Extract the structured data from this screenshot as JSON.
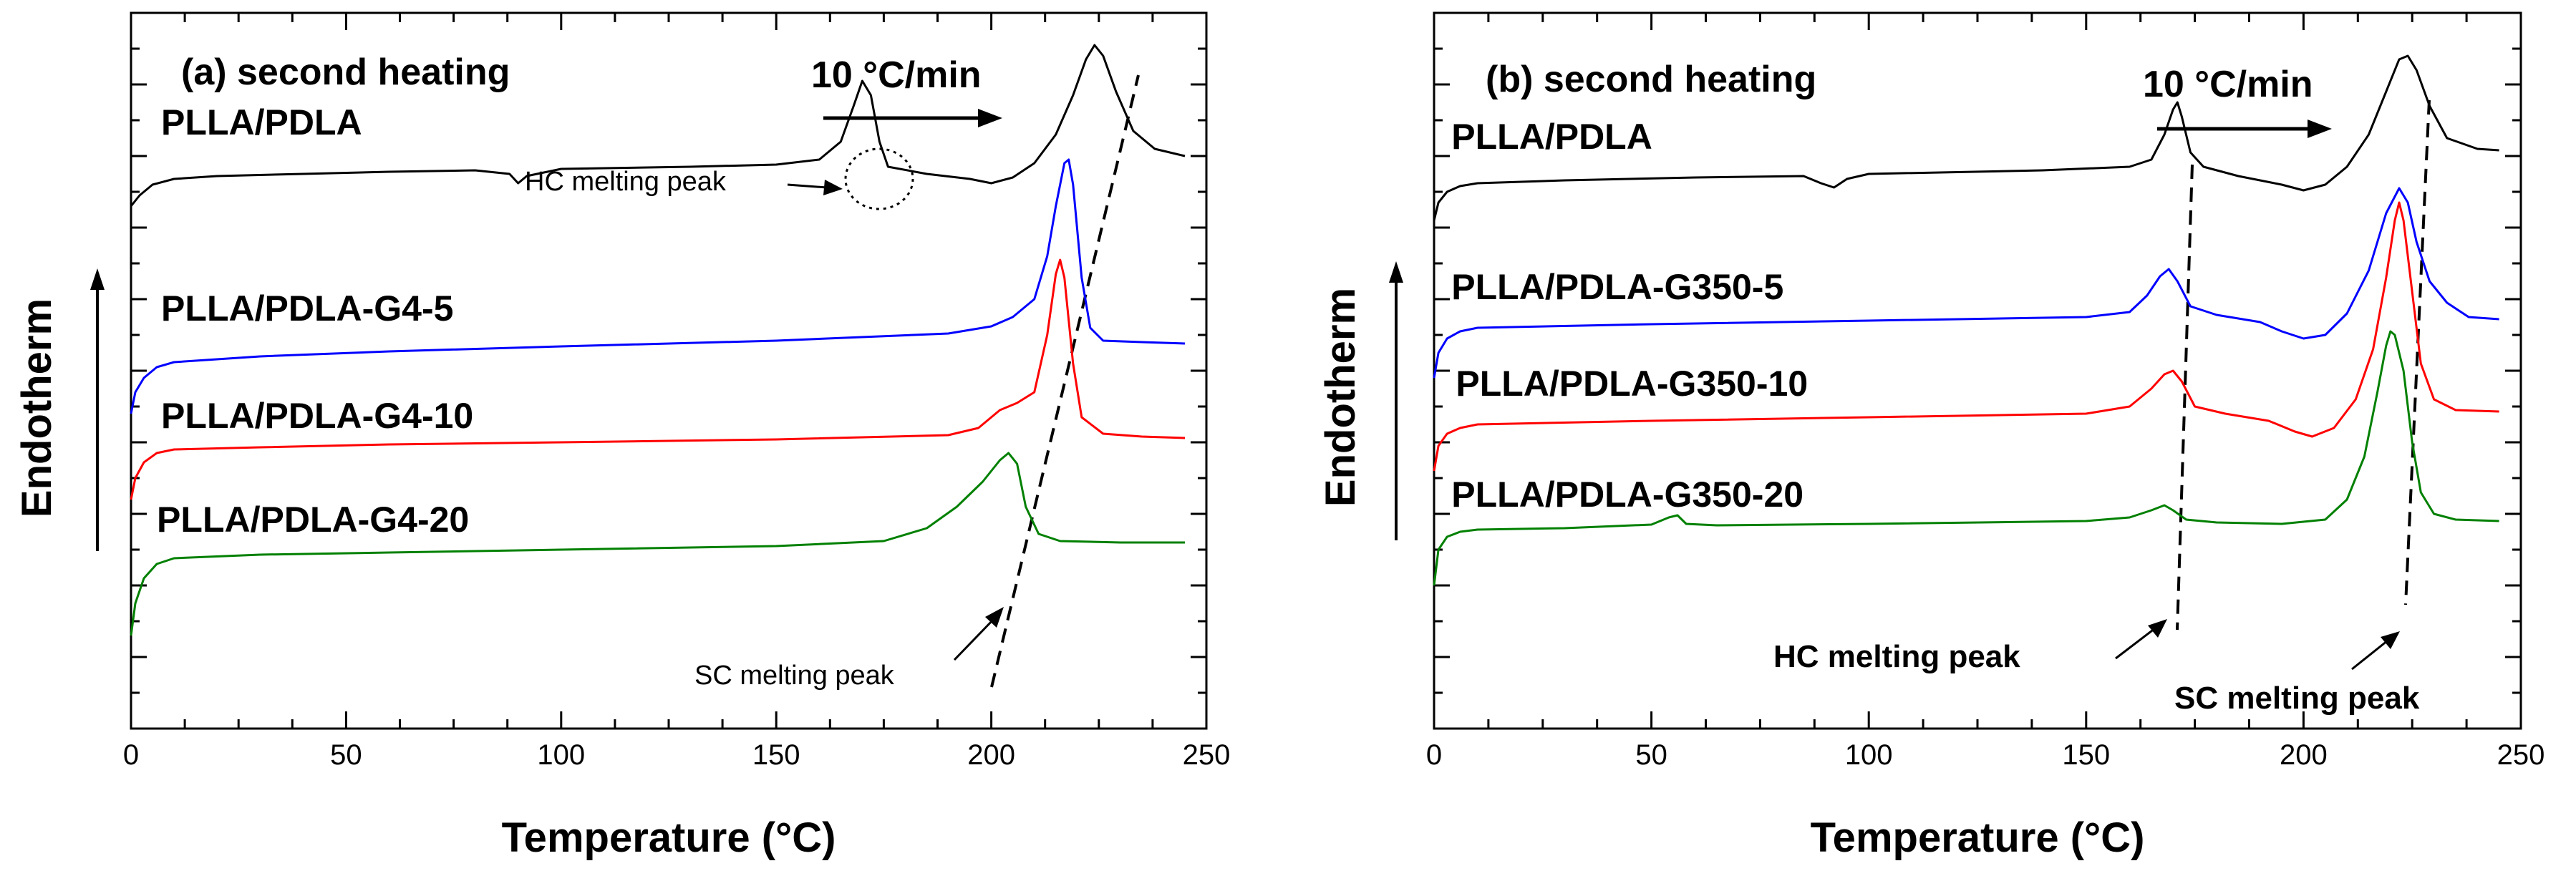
{
  "figure": {
    "x_axis_title": "Temperature (°C)",
    "y_axis_title": "Endotherm",
    "rate_label": "10 °C/min"
  },
  "chart_data": [
    {
      "type": "line",
      "title": "(a) second heating",
      "xlabel": "Temperature (°C)",
      "ylabel": "Endotherm",
      "xlim": [
        0,
        250
      ],
      "ylim": [
        0,
        10
      ],
      "x_ticks": [
        0,
        50,
        100,
        150,
        200,
        250
      ],
      "rate_label": "10 °C/min",
      "series": [
        {
          "name": "PLLA/PDLA",
          "label": "PLLA/PDLA",
          "color": "#000000",
          "points": [
            [
              0,
              7.3
            ],
            [
              2,
              7.45
            ],
            [
              5,
              7.6
            ],
            [
              10,
              7.68
            ],
            [
              20,
              7.72
            ],
            [
              40,
              7.75
            ],
            [
              60,
              7.78
            ],
            [
              80,
              7.8
            ],
            [
              88,
              7.75
            ],
            [
              90,
              7.62
            ],
            [
              92,
              7.72
            ],
            [
              100,
              7.82
            ],
            [
              130,
              7.85
            ],
            [
              150,
              7.88
            ],
            [
              160,
              7.95
            ],
            [
              165,
              8.2
            ],
            [
              168,
              8.7
            ],
            [
              170,
              9.05
            ],
            [
              172,
              8.85
            ],
            [
              174,
              8.2
            ],
            [
              176,
              7.85
            ],
            [
              185,
              7.75
            ],
            [
              195,
              7.68
            ],
            [
              200,
              7.62
            ],
            [
              205,
              7.7
            ],
            [
              210,
              7.9
            ],
            [
              215,
              8.3
            ],
            [
              219,
              8.85
            ],
            [
              222,
              9.35
            ],
            [
              224,
              9.55
            ],
            [
              226,
              9.4
            ],
            [
              229,
              8.9
            ],
            [
              233,
              8.35
            ],
            [
              238,
              8.1
            ],
            [
              245,
              8.0
            ]
          ],
          "label_pos": [
            7,
            8.3
          ]
        },
        {
          "name": "PLLA/PDLA-G4-5",
          "label": "PLLA/PDLA-G4-5",
          "color": "#0000ff",
          "points": [
            [
              0,
              4.4
            ],
            [
              1,
              4.7
            ],
            [
              3,
              4.9
            ],
            [
              6,
              5.05
            ],
            [
              10,
              5.12
            ],
            [
              30,
              5.2
            ],
            [
              60,
              5.27
            ],
            [
              100,
              5.34
            ],
            [
              150,
              5.42
            ],
            [
              190,
              5.52
            ],
            [
              200,
              5.62
            ],
            [
              205,
              5.75
            ],
            [
              210,
              6.0
            ],
            [
              213,
              6.6
            ],
            [
              215,
              7.3
            ],
            [
              217,
              7.9
            ],
            [
              218,
              7.95
            ],
            [
              219,
              7.6
            ],
            [
              221,
              6.3
            ],
            [
              223,
              5.6
            ],
            [
              226,
              5.42
            ],
            [
              235,
              5.4
            ],
            [
              245,
              5.38
            ]
          ],
          "label_pos": [
            7,
            5.7
          ]
        },
        {
          "name": "PLLA/PDLA-G4-10",
          "label": "PLLA/PDLA-G4-10",
          "color": "#ff0000",
          "points": [
            [
              0,
              3.2
            ],
            [
              1,
              3.5
            ],
            [
              3,
              3.72
            ],
            [
              6,
              3.85
            ],
            [
              10,
              3.9
            ],
            [
              30,
              3.93
            ],
            [
              60,
              3.97
            ],
            [
              100,
              4.0
            ],
            [
              150,
              4.04
            ],
            [
              190,
              4.1
            ],
            [
              197,
              4.2
            ],
            [
              202,
              4.45
            ],
            [
              206,
              4.55
            ],
            [
              210,
              4.7
            ],
            [
              213,
              5.5
            ],
            [
              215,
              6.35
            ],
            [
              216,
              6.55
            ],
            [
              217,
              6.3
            ],
            [
              219,
              5.1
            ],
            [
              221,
              4.35
            ],
            [
              226,
              4.12
            ],
            [
              235,
              4.08
            ],
            [
              245,
              4.06
            ]
          ],
          "label_pos": [
            7,
            4.2
          ]
        },
        {
          "name": "PLLA/PDLA-G4-20",
          "label": "PLLA/PDLA-G4-20",
          "color": "#008000",
          "points": [
            [
              0,
              1.3
            ],
            [
              1,
              1.75
            ],
            [
              3,
              2.1
            ],
            [
              6,
              2.3
            ],
            [
              10,
              2.38
            ],
            [
              30,
              2.43
            ],
            [
              60,
              2.46
            ],
            [
              100,
              2.5
            ],
            [
              150,
              2.55
            ],
            [
              175,
              2.62
            ],
            [
              185,
              2.8
            ],
            [
              192,
              3.1
            ],
            [
              198,
              3.45
            ],
            [
              202,
              3.75
            ],
            [
              204,
              3.85
            ],
            [
              206,
              3.7
            ],
            [
              208,
              3.1
            ],
            [
              211,
              2.72
            ],
            [
              216,
              2.62
            ],
            [
              230,
              2.6
            ],
            [
              245,
              2.6
            ]
          ],
          "label_pos": [
            6,
            2.75
          ]
        }
      ],
      "annotations": {
        "hc_label": "HC melting peak",
        "sc_label": "SC melting peak"
      }
    },
    {
      "type": "line",
      "title": "(b) second heating",
      "xlabel": "Temperature (°C)",
      "ylabel": "Endotherm",
      "xlim": [
        0,
        250
      ],
      "ylim": [
        0,
        10
      ],
      "x_ticks": [
        0,
        50,
        100,
        150,
        200,
        250
      ],
      "rate_label": "10 °C/min",
      "series": [
        {
          "name": "PLLA/PDLA",
          "label": "PLLA/PDLA",
          "color": "#000000",
          "points": [
            [
              0,
              7.1
            ],
            [
              1,
              7.35
            ],
            [
              3,
              7.5
            ],
            [
              6,
              7.58
            ],
            [
              10,
              7.62
            ],
            [
              30,
              7.66
            ],
            [
              60,
              7.7
            ],
            [
              85,
              7.72
            ],
            [
              89,
              7.62
            ],
            [
              92,
              7.56
            ],
            [
              95,
              7.68
            ],
            [
              100,
              7.75
            ],
            [
              140,
              7.8
            ],
            [
              160,
              7.85
            ],
            [
              165,
              7.95
            ],
            [
              168,
              8.3
            ],
            [
              170,
              8.65
            ],
            [
              171,
              8.75
            ],
            [
              172,
              8.55
            ],
            [
              174,
              8.05
            ],
            [
              177,
              7.85
            ],
            [
              185,
              7.72
            ],
            [
              195,
              7.6
            ],
            [
              200,
              7.52
            ],
            [
              205,
              7.6
            ],
            [
              210,
              7.85
            ],
            [
              215,
              8.3
            ],
            [
              219,
              8.9
            ],
            [
              222,
              9.35
            ],
            [
              224,
              9.4
            ],
            [
              226,
              9.2
            ],
            [
              229,
              8.7
            ],
            [
              233,
              8.25
            ],
            [
              240,
              8.1
            ],
            [
              245,
              8.08
            ]
          ],
          "label_pos": [
            4,
            8.1
          ]
        },
        {
          "name": "PLLA/PDLA-G350-5",
          "label": "PLLA/PDLA-G350-5",
          "color": "#0000ff",
          "points": [
            [
              0,
              4.9
            ],
            [
              1,
              5.25
            ],
            [
              3,
              5.45
            ],
            [
              6,
              5.55
            ],
            [
              10,
              5.6
            ],
            [
              50,
              5.65
            ],
            [
              100,
              5.7
            ],
            [
              150,
              5.75
            ],
            [
              160,
              5.82
            ],
            [
              164,
              6.05
            ],
            [
              167,
              6.32
            ],
            [
              169,
              6.42
            ],
            [
              171,
              6.25
            ],
            [
              174,
              5.9
            ],
            [
              180,
              5.78
            ],
            [
              190,
              5.68
            ],
            [
              195,
              5.55
            ],
            [
              200,
              5.45
            ],
            [
              205,
              5.5
            ],
            [
              210,
              5.8
            ],
            [
              215,
              6.4
            ],
            [
              219,
              7.2
            ],
            [
              222,
              7.55
            ],
            [
              224,
              7.35
            ],
            [
              226,
              6.8
            ],
            [
              229,
              6.25
            ],
            [
              233,
              5.95
            ],
            [
              238,
              5.75
            ],
            [
              245,
              5.72
            ]
          ],
          "label_pos": [
            4,
            6.0
          ]
        },
        {
          "name": "PLLA/PDLA-G350-10",
          "label": "PLLA/PDLA-G350-10",
          "color": "#ff0000",
          "points": [
            [
              0,
              3.6
            ],
            [
              1,
              3.95
            ],
            [
              3,
              4.12
            ],
            [
              6,
              4.2
            ],
            [
              10,
              4.25
            ],
            [
              50,
              4.3
            ],
            [
              100,
              4.35
            ],
            [
              150,
              4.4
            ],
            [
              160,
              4.5
            ],
            [
              165,
              4.75
            ],
            [
              168,
              4.95
            ],
            [
              170,
              5.0
            ],
            [
              172,
              4.85
            ],
            [
              175,
              4.5
            ],
            [
              182,
              4.4
            ],
            [
              192,
              4.3
            ],
            [
              198,
              4.15
            ],
            [
              202,
              4.08
            ],
            [
              207,
              4.2
            ],
            [
              212,
              4.6
            ],
            [
              216,
              5.3
            ],
            [
              219,
              6.3
            ],
            [
              221,
              7.1
            ],
            [
              222,
              7.35
            ],
            [
              223,
              7.1
            ],
            [
              225,
              6.1
            ],
            [
              227,
              5.1
            ],
            [
              230,
              4.6
            ],
            [
              235,
              4.45
            ],
            [
              245,
              4.43
            ]
          ],
          "label_pos": [
            5,
            4.65
          ]
        },
        {
          "name": "PLLA/PDLA-G350-20",
          "label": "PLLA/PDLA-G350-20",
          "color": "#008000",
          "points": [
            [
              0,
              2.0
            ],
            [
              1,
              2.5
            ],
            [
              3,
              2.68
            ],
            [
              6,
              2.75
            ],
            [
              10,
              2.78
            ],
            [
              30,
              2.8
            ],
            [
              50,
              2.85
            ],
            [
              54,
              2.95
            ],
            [
              56,
              2.98
            ],
            [
              58,
              2.86
            ],
            [
              65,
              2.84
            ],
            [
              100,
              2.86
            ],
            [
              150,
              2.9
            ],
            [
              160,
              2.95
            ],
            [
              165,
              3.05
            ],
            [
              168,
              3.12
            ],
            [
              170,
              3.05
            ],
            [
              173,
              2.92
            ],
            [
              180,
              2.88
            ],
            [
              195,
              2.86
            ],
            [
              205,
              2.92
            ],
            [
              210,
              3.2
            ],
            [
              214,
              3.8
            ],
            [
              217,
              4.7
            ],
            [
              219,
              5.35
            ],
            [
              220,
              5.55
            ],
            [
              221,
              5.5
            ],
            [
              223,
              5.0
            ],
            [
              225,
              4.0
            ],
            [
              227,
              3.3
            ],
            [
              230,
              3.0
            ],
            [
              235,
              2.92
            ],
            [
              245,
              2.9
            ]
          ],
          "label_pos": [
            4,
            3.1
          ]
        }
      ],
      "annotations": {
        "hc_label": "HC melting peak",
        "sc_label": "SC melting peak"
      }
    }
  ]
}
